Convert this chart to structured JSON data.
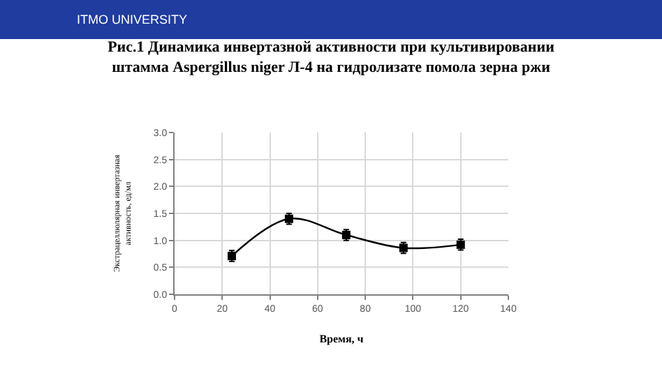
{
  "chart_data": {
    "type": "line",
    "title": "Рис.1 Динамика инвертазной активности при культивировании\nштамма Aspergillus niger Л-4 на гидролизате помола зерна ржи",
    "xlabel": "Время, ч",
    "ylabel": "Экстрацеллюлярная инвертазная\nактивность, ед/мл",
    "annotations": [
      "ITMO UNIVERSITY"
    ],
    "x": [
      24,
      48,
      72,
      96,
      120
    ],
    "series": [
      {
        "color": "#000000",
        "values": [
          0.71,
          1.4,
          1.1,
          0.86,
          0.92
        ],
        "errors": [
          0.1,
          0.1,
          0.1,
          0.1,
          0.1
        ]
      }
    ],
    "xlim": [
      0,
      140
    ],
    "xticks": [
      0,
      20,
      40,
      60,
      80,
      100,
      120,
      140
    ],
    "ylim": [
      0,
      3
    ],
    "yticks": [
      {
        "value": 0,
        "label": "0.0"
      },
      {
        "value": 0.5,
        "label": "0.5"
      },
      {
        "value": 1,
        "label": "1.0"
      },
      {
        "value": 1.5,
        "label": "1.5"
      },
      {
        "value": 2,
        "label": "2.0"
      },
      {
        "value": 2.5,
        "label": "2.5"
      },
      {
        "value": 3,
        "label": "3.0"
      }
    ],
    "grid": true,
    "marker": "square",
    "line_style": "solid"
  }
}
